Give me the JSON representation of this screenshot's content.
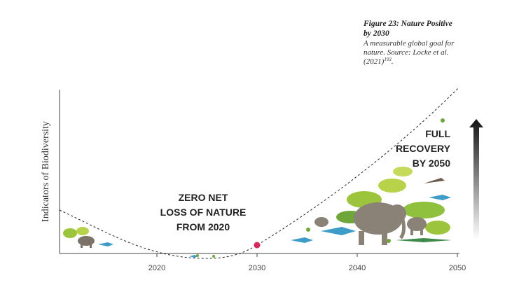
{
  "caption": {
    "title_lines": [
      "Figure 23: Nature Positive",
      "by 2030"
    ],
    "text_lines": [
      "A measurable global goal for",
      "nature. Source: Locke et al.",
      "(2021)"
    ],
    "ref": "193"
  },
  "y_axis_label": "Indicators of Biodiversity",
  "x_ticks": [
    "2020",
    "2030",
    "2040",
    "2050"
  ],
  "annotations": {
    "zero_net": [
      "ZERO NET",
      "LOSS OF NATURE",
      "FROM 2020"
    ],
    "full_recovery": [
      "FULL",
      "RECOVERY",
      "BY 2050"
    ]
  }
}
